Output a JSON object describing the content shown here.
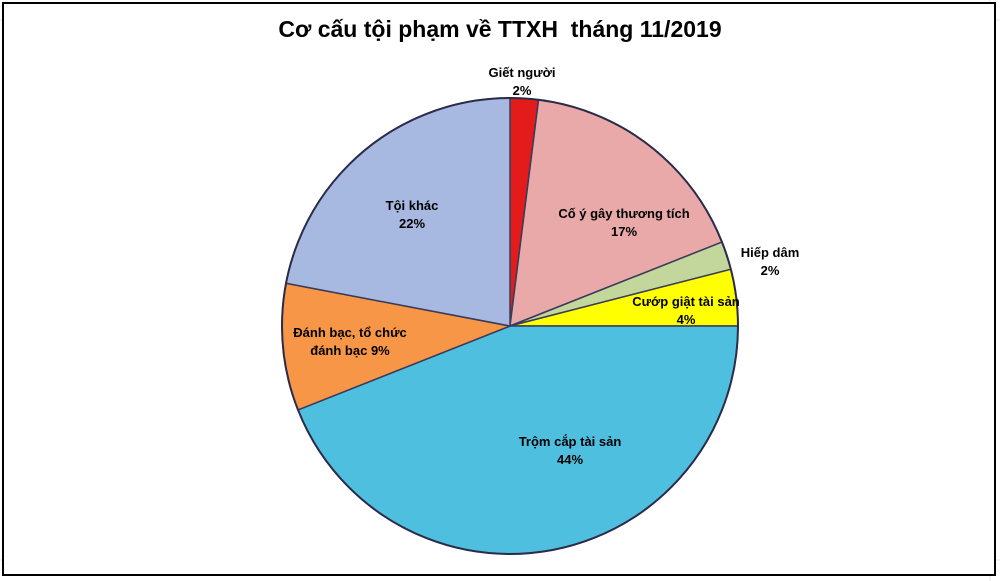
{
  "chart_data": {
    "type": "pie",
    "title": "Cơ cấu tội phạm về TTXH  tháng 11/2019",
    "categories": [
      "Giết người",
      "Cố ý gây thương tích",
      "Hiếp dâm",
      "Cướp giật tài sản",
      "Trộm cắp tài sản",
      "Đánh bạc, tổ chức đánh bạc",
      "Tội khác"
    ],
    "values": [
      2,
      17,
      2,
      4,
      44,
      9,
      22
    ],
    "value_labels": [
      "2%",
      "17%",
      "2%",
      "4%",
      "44%",
      "9%",
      "22%"
    ],
    "colors": [
      "#e31b1b",
      "#e9a9a8",
      "#c3d69b",
      "#ffff00",
      "#4fbfe0",
      "#f79646",
      "#a7b9e1"
    ]
  }
}
